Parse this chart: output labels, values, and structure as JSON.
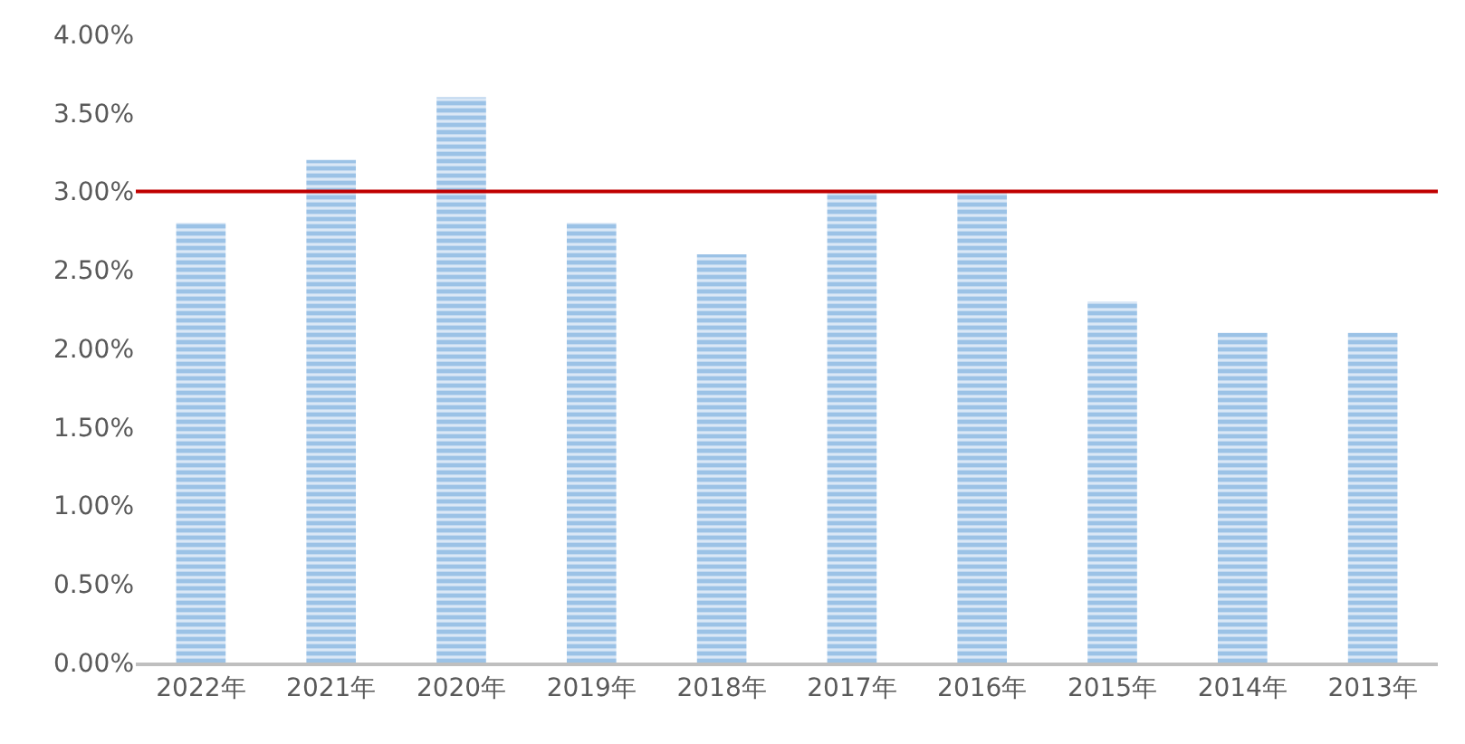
{
  "chart_data": {
    "type": "bar",
    "categories": [
      "2022年",
      "2021年",
      "2020年",
      "2019年",
      "2018年",
      "2017年",
      "2016年",
      "2015年",
      "2014年",
      "2013年"
    ],
    "values": [
      2.8,
      3.2,
      3.6,
      2.8,
      2.6,
      3.0,
      3.0,
      2.3,
      2.1,
      2.1
    ],
    "color": "#5b9bd5",
    "ylim": [
      0,
      4
    ],
    "yticks": [
      {
        "value": 0,
        "label": "0.00%"
      },
      {
        "value": 0.5,
        "label": "0.50%"
      },
      {
        "value": 1,
        "label": "1.00%"
      },
      {
        "value": 1.5,
        "label": "1.50%"
      },
      {
        "value": 2,
        "label": "2.00%"
      },
      {
        "value": 2.5,
        "label": "2.50%"
      },
      {
        "value": 3,
        "label": "3.00%"
      },
      {
        "value": 3.5,
        "label": "3.50%"
      },
      {
        "value": 4,
        "label": "4.00%"
      }
    ],
    "ref_lines": [
      {
        "axis": "y",
        "value": 3.0,
        "label": null,
        "color": "#c00000"
      }
    ]
  }
}
